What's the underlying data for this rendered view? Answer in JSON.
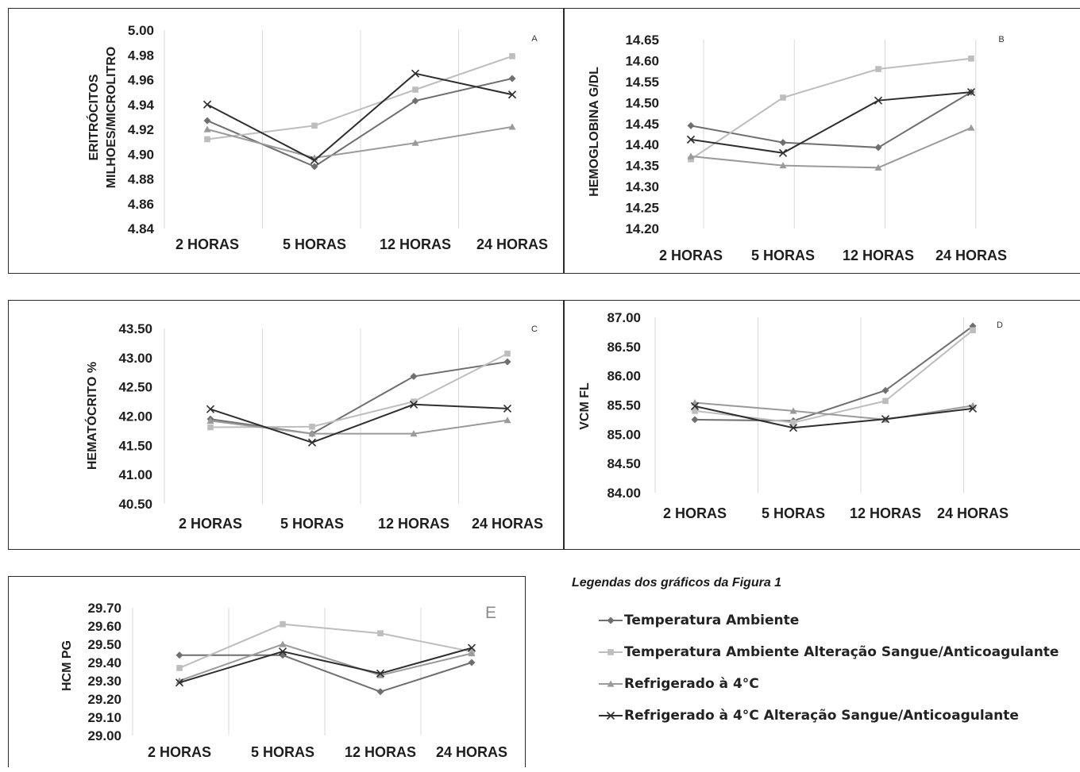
{
  "legend": {
    "title": "Legendas dos gráficos da Figura 1",
    "items": [
      {
        "label": "Temperatura Ambiente",
        "color": "#6f6f6f",
        "marker": "diamond"
      },
      {
        "label": "Temperatura Ambiente Alteração Sangue/Anticoagulante",
        "color": "#bdbdbd",
        "marker": "square"
      },
      {
        "label": "Refrigerado à 4°C",
        "color": "#9a9a9a",
        "marker": "triangle"
      },
      {
        "label": "Refrigerado à 4°C Alteração Sangue/Anticoagulante",
        "color": "#2e2e2e",
        "marker": "x"
      }
    ]
  },
  "chart_data": [
    {
      "id": "A",
      "panel_label": "A",
      "type": "line",
      "ylabel": [
        "ERITRÓCITOS",
        "MILHOES/MICROLITRO"
      ],
      "categories": [
        "2 HORAS",
        "5 HORAS",
        "12 HORAS",
        "24 HORAS"
      ],
      "ylim": [
        4.84,
        5.0
      ],
      "ystep": 0.02,
      "decimals": 2,
      "grid": "vertical",
      "series": [
        {
          "values": [
            4.927,
            4.89,
            4.943,
            4.961
          ],
          "marker": "diamond",
          "color": "#6f6f6f"
        },
        {
          "values": [
            4.912,
            4.923,
            4.952,
            4.979
          ],
          "marker": "square",
          "color": "#bdbdbd"
        },
        {
          "values": [
            4.92,
            4.897,
            4.909,
            4.922
          ],
          "marker": "triangle",
          "color": "#9a9a9a"
        },
        {
          "values": [
            4.94,
            4.895,
            4.965,
            4.948
          ],
          "marker": "x",
          "color": "#2e2e2e"
        }
      ]
    },
    {
      "id": "B",
      "panel_label": "B",
      "type": "line",
      "ylabel": [
        "HEMOGLOBINA  G/DL"
      ],
      "categories": [
        "2 HORAS",
        "5 HORAS",
        "12 HORAS",
        "24 HORAS"
      ],
      "ylim": [
        14.2,
        14.65
      ],
      "ystep": 0.05,
      "decimals": 2,
      "grid": "vertical",
      "series": [
        {
          "values": [
            14.445,
            14.405,
            14.393,
            14.525
          ],
          "marker": "diamond",
          "color": "#6f6f6f"
        },
        {
          "values": [
            14.365,
            14.512,
            14.58,
            14.605
          ],
          "marker": "square",
          "color": "#bdbdbd"
        },
        {
          "values": [
            14.372,
            14.35,
            14.345,
            14.44
          ],
          "marker": "triangle",
          "color": "#9a9a9a"
        },
        {
          "values": [
            14.412,
            14.38,
            14.505,
            14.525
          ],
          "marker": "x",
          "color": "#2e2e2e"
        }
      ]
    },
    {
      "id": "C",
      "panel_label": "C",
      "type": "line",
      "ylabel": [
        "HEMATÓCRITO  %"
      ],
      "categories": [
        "2 HORAS",
        "5 HORAS",
        "12 HORAS",
        "24 HORAS"
      ],
      "ylim": [
        40.5,
        43.5
      ],
      "ystep": 0.5,
      "decimals": 2,
      "grid": "vertical",
      "series": [
        {
          "values": [
            41.95,
            41.7,
            42.68,
            42.93
          ],
          "marker": "diamond",
          "color": "#6f6f6f"
        },
        {
          "values": [
            41.81,
            41.82,
            42.25,
            43.07
          ],
          "marker": "square",
          "color": "#bdbdbd"
        },
        {
          "values": [
            41.92,
            41.7,
            41.7,
            41.93
          ],
          "marker": "triangle",
          "color": "#9a9a9a"
        },
        {
          "values": [
            42.12,
            41.55,
            42.2,
            42.13
          ],
          "marker": "x",
          "color": "#2e2e2e"
        }
      ]
    },
    {
      "id": "D",
      "panel_label": "D",
      "type": "line",
      "ylabel": [
        "VCM FL"
      ],
      "categories": [
        "2 HORAS",
        "5 HORAS",
        "12 HORAS",
        "24 HORAS"
      ],
      "ylim": [
        84.0,
        87.0
      ],
      "ystep": 0.5,
      "decimals": 2,
      "grid": "vertical",
      "series": [
        {
          "values": [
            85.25,
            85.23,
            85.75,
            86.85
          ],
          "marker": "diamond",
          "color": "#6f6f6f"
        },
        {
          "values": [
            85.4,
            85.2,
            85.57,
            86.78
          ],
          "marker": "square",
          "color": "#bdbdbd"
        },
        {
          "values": [
            85.54,
            85.4,
            85.25,
            85.49
          ],
          "marker": "triangle",
          "color": "#9a9a9a"
        },
        {
          "values": [
            85.48,
            85.11,
            85.26,
            85.44
          ],
          "marker": "x",
          "color": "#2e2e2e"
        }
      ]
    },
    {
      "id": "E",
      "panel_label": "E",
      "type": "line",
      "ylabel": [
        "HCM   PG"
      ],
      "categories": [
        "2 HORAS",
        "5 HORAS",
        "12 HORAS",
        "24 HORAS"
      ],
      "ylim": [
        29.0,
        29.7
      ],
      "ystep": 0.1,
      "decimals": 2,
      "grid": "vertical",
      "series": [
        {
          "values": [
            29.44,
            29.44,
            29.24,
            29.4
          ],
          "marker": "diamond",
          "color": "#6f6f6f"
        },
        {
          "values": [
            29.37,
            29.61,
            29.56,
            29.46
          ],
          "marker": "square",
          "color": "#bdbdbd"
        },
        {
          "values": [
            29.3,
            29.5,
            29.33,
            29.45
          ],
          "marker": "triangle",
          "color": "#9a9a9a"
        },
        {
          "values": [
            29.29,
            29.46,
            29.34,
            29.48
          ],
          "marker": "x",
          "color": "#2e2e2e"
        }
      ]
    }
  ]
}
